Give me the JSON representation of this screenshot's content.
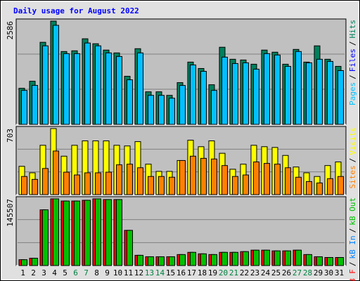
{
  "chart_data": [
    {
      "type": "bar",
      "title": "Daily usage for August 2022",
      "ylim": [
        0,
        2586
      ],
      "yticks": [
        2586
      ],
      "grid": true,
      "right_legend": [
        {
          "text": "Pages",
          "color": "#00C0FF"
        },
        {
          "text": "/",
          "color": "#000000"
        },
        {
          "text": "Files",
          "color": "#0000FF"
        },
        {
          "text": "/",
          "color": "#000000"
        },
        {
          "text": "Hits",
          "color": "#00805C"
        }
      ],
      "series": [
        {
          "color": "#00805C",
          "values": [
            903,
            1080,
            2055,
            2586,
            1824,
            1842,
            2143,
            2019,
            1860,
            1789,
            1204,
            1895,
            815,
            815,
            726,
            1045,
            1559,
            1399,
            992,
            1931,
            1630,
            1612,
            1506,
            1860,
            1807,
            1506,
            1877,
            1559,
            1966,
            1630,
            1452
          ]
        },
        {
          "color": "#00C0FF",
          "values": [
            850,
            975,
            1966,
            2480,
            1771,
            1771,
            2037,
            1966,
            1789,
            1700,
            1116,
            1789,
            726,
            726,
            655,
            974,
            1488,
            1328,
            850,
            1683,
            1523,
            1541,
            1382,
            1771,
            1736,
            1452,
            1824,
            1541,
            1630,
            1576,
            1346
          ]
        }
      ]
    },
    {
      "type": "bar",
      "ylim": [
        0,
        703
      ],
      "yticks": [
        703
      ],
      "grid": true,
      "right_legend": [
        {
          "text": "Sites",
          "color": "#FF8000"
        },
        {
          "text": "/",
          "color": "#000000"
        },
        {
          "text": "Visits",
          "color": "#FFFF00"
        }
      ],
      "series": [
        {
          "color": "#FFFF00",
          "values": [
            301,
            232,
            525,
            703,
            409,
            525,
            572,
            572,
            572,
            525,
            518,
            564,
            324,
            247,
            247,
            363,
            579,
            510,
            572,
            440,
            270,
            324,
            525,
            510,
            502,
            417,
            294,
            232,
            193,
            309,
            348
          ]
        },
        {
          "color": "#FF8000",
          "values": [
            193,
            162,
            278,
            464,
            239,
            209,
            232,
            232,
            239,
            317,
            324,
            286,
            193,
            193,
            185,
            363,
            409,
            386,
            379,
            309,
            193,
            209,
            348,
            332,
            324,
            286,
            185,
            139,
            124,
            170,
            193
          ]
        }
      ]
    },
    {
      "type": "bar",
      "ylim": [
        0,
        145507
      ],
      "yticks": [
        145507
      ],
      "grid": true,
      "right_legend": [
        {
          "text": "kB F",
          "color": "#FF0000"
        },
        {
          "text": "/",
          "color": "#000000"
        },
        {
          "text": "kB In",
          "color": "#0080FF"
        },
        {
          "text": "/",
          "color": "#000000"
        },
        {
          "text": "kB Out",
          "color": "#00C000"
        }
      ],
      "categories": [
        "1",
        "2",
        "3",
        "4",
        "5",
        "6",
        "7",
        "8",
        "9",
        "10",
        "11",
        "12",
        "13",
        "14",
        "15",
        "16",
        "17",
        "18",
        "19",
        "20",
        "21",
        "22",
        "23",
        "24",
        "25",
        "26",
        "27",
        "28",
        "29",
        "30",
        "31"
      ],
      "category_colors": [
        "#000",
        "#000",
        "#000",
        "#000",
        "#000",
        "#008040",
        "#008040",
        "#000",
        "#000",
        "#000",
        "#000",
        "#000",
        "#008040",
        "#008040",
        "#000",
        "#000",
        "#000",
        "#000",
        "#000",
        "#008040",
        "#008040",
        "#000",
        "#000",
        "#000",
        "#000",
        "#000",
        "#008040",
        "#008040",
        "#000",
        "#000",
        "#000"
      ],
      "series": [
        {
          "color": "#FF0000",
          "values": [
            12792,
            15990,
            121524,
            145507,
            140712,
            140712,
            142311,
            145507,
            143910,
            143910,
            76752,
            22386,
            19188,
            19188,
            19188,
            23985,
            28782,
            25584,
            23985,
            28782,
            28782,
            30381,
            33579,
            33579,
            31980,
            31980,
            33579,
            23985,
            19188,
            17589,
            17589
          ]
        },
        {
          "color": "#00C000",
          "values": [
            12792,
            15990,
            121524,
            145507,
            140712,
            140712,
            142311,
            145507,
            143910,
            143910,
            76752,
            22386,
            19188,
            19188,
            19188,
            23985,
            28782,
            25584,
            23985,
            28782,
            28782,
            30381,
            33579,
            33579,
            31980,
            31980,
            33579,
            23985,
            19188,
            17589,
            17589
          ]
        }
      ]
    }
  ]
}
